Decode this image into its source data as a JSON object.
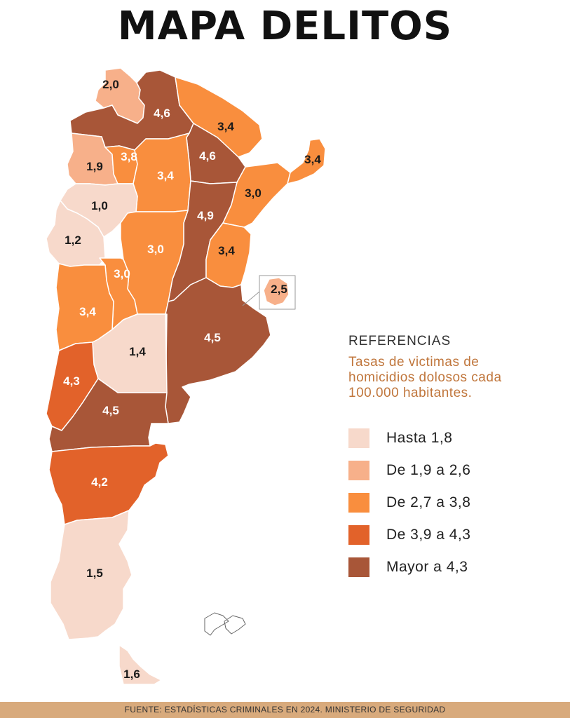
{
  "title": "MAPA DELITOS",
  "legend": {
    "heading": "REFERENCIAS",
    "subtitle_lines": [
      "Tasas de victimas de",
      "homicidios dolosos cada",
      "100.000 habitantes."
    ],
    "items": [
      {
        "label": "Hasta 1,8",
        "color": "#f7d9cb"
      },
      {
        "label": "De 1,9 a 2,6",
        "color": "#f7b08a"
      },
      {
        "label": "De 2,7 a 3,8",
        "color": "#f98e3e"
      },
      {
        "label": "De 3,9 a 4,3",
        "color": "#e2622a"
      },
      {
        "label": "Mayor a 4,3",
        "color": "#a85638"
      }
    ]
  },
  "map": {
    "regions": [
      {
        "value": "2,0",
        "color": "#f7b08a"
      },
      {
        "value": "4,6",
        "color": "#a85638"
      },
      {
        "value": "3,4",
        "color": "#f98e3e"
      },
      {
        "value": "4,6",
        "color": "#a85638"
      },
      {
        "value": "3,4",
        "color": "#f98e3e"
      },
      {
        "value": "1,9",
        "color": "#f7b08a"
      },
      {
        "value": "3,8",
        "color": "#f98e3e"
      },
      {
        "value": "3,4",
        "color": "#f98e3e"
      },
      {
        "value": "3,0",
        "color": "#f98e3e"
      },
      {
        "value": "1,0",
        "color": "#f7d9cb"
      },
      {
        "value": "4,9",
        "color": "#a85638"
      },
      {
        "value": "1,2",
        "color": "#f7d9cb"
      },
      {
        "value": "3,0",
        "color": "#f98e3e"
      },
      {
        "value": "3,4",
        "color": "#f98e3e"
      },
      {
        "value": "3,0",
        "color": "#f98e3e"
      },
      {
        "value": "2,5",
        "color": "#f7b08a"
      },
      {
        "value": "3,4",
        "color": "#f98e3e"
      },
      {
        "value": "4,5",
        "color": "#a85638"
      },
      {
        "value": "1,4",
        "color": "#f7d9cb"
      },
      {
        "value": "4,3",
        "color": "#e2622a"
      },
      {
        "value": "4,5",
        "color": "#a85638"
      },
      {
        "value": "4,2",
        "color": "#e2622a"
      },
      {
        "value": "1,5",
        "color": "#f7d9cb"
      },
      {
        "value": "1,6",
        "color": "#f7d9cb"
      }
    ],
    "islands_color": "#ffffff"
  },
  "footer": "FUENTE: ESTADÍSTICAS CRIMINALES EN 2024. MINISTERIO DE SEGURIDAD"
}
